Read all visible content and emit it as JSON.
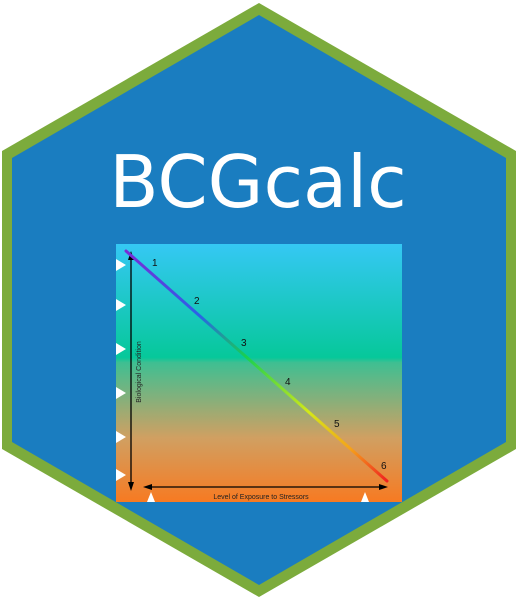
{
  "logo": {
    "title": "BCGcalc",
    "colors": {
      "hex_fill": "#1a7dc0",
      "hex_border": "#7cab3c",
      "title": "#ffffff"
    }
  },
  "figure": {
    "y_axis_label": "Biological Condition",
    "x_axis_label": "Level of Exposure to Stressors",
    "levels": [
      "1",
      "2",
      "3",
      "4",
      "5",
      "6"
    ],
    "gradient_colors": {
      "top": "#35c8f4",
      "middle": "#06c89a",
      "bottom": "#f77a22"
    },
    "line_colors": [
      "#7a2bd6",
      "#2a62e8",
      "#18d050",
      "#d4e818",
      "#f5a21a",
      "#f02020"
    ]
  }
}
